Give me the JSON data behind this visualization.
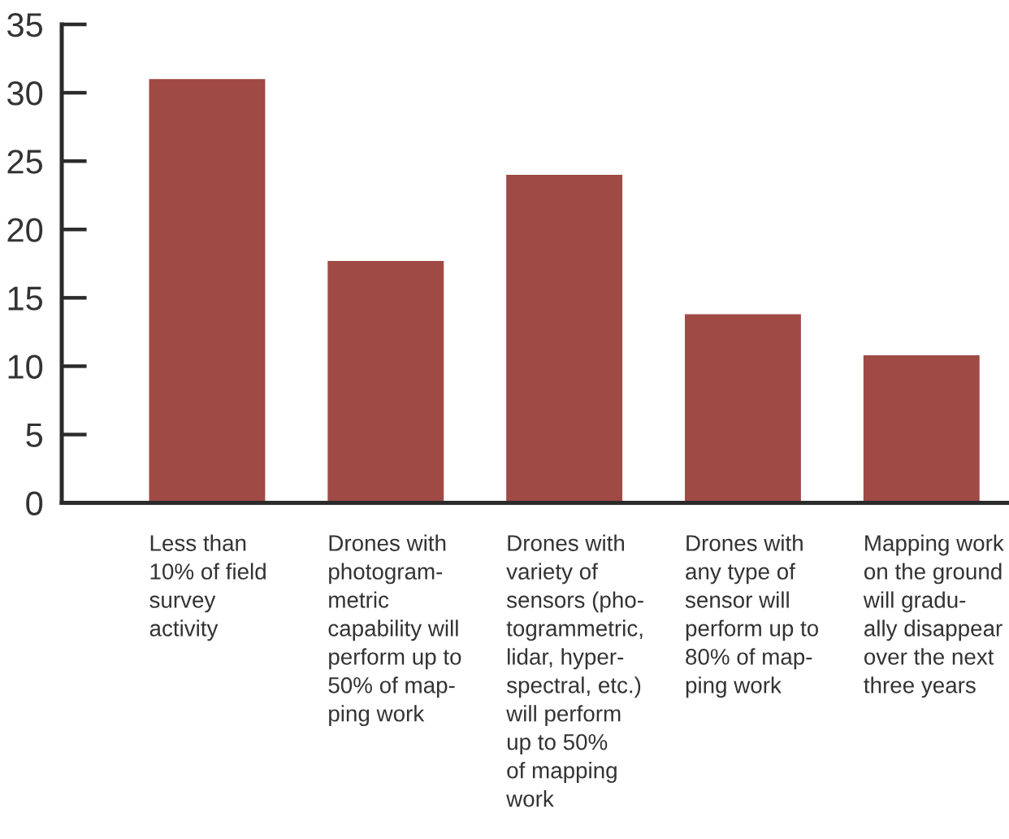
{
  "chart_data": {
    "type": "bar",
    "categories": [
      "Less than\n10% of field\nsurvey\nactivity",
      "Drones with\nphotogram-\nmetric\ncapability will\nperform up to\n50% of map-\nping work",
      "Drones with\nvariety of\nsensors (pho-\ntogrammetric,\nlidar, hyper-\nspectral, etc.)\nwill perform\nup to 50%\nof mapping\nwork",
      "Drones with\nany type of\nsensor will\nperform up to\n80% of map-\nping work",
      "Mapping work\non the ground\nwill gradu-\nally disappear\nover the next\nthree years"
    ],
    "values": [
      31,
      17.7,
      24,
      13.8,
      10.8
    ],
    "color": "#a04a45",
    "ylim": [
      0,
      35
    ],
    "yticks": [
      0,
      5,
      10,
      15,
      20,
      25,
      30,
      35
    ]
  }
}
